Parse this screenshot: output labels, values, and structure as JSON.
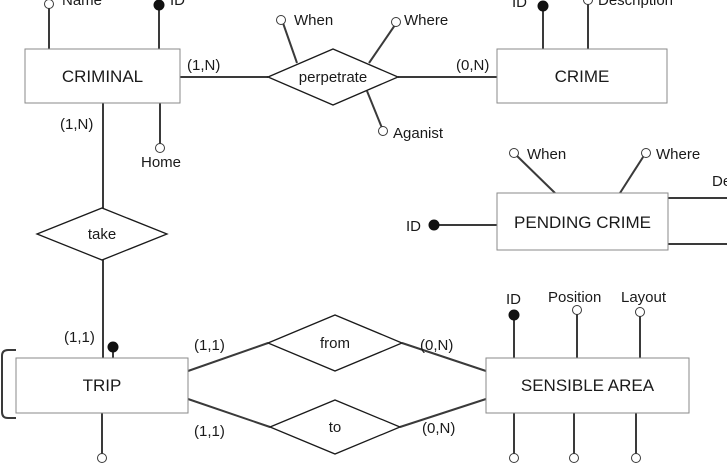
{
  "entities": {
    "criminal": "CRIMINAL",
    "crime": "CRIME",
    "pending_crime": "PENDING CRIME",
    "trip": "TRIP",
    "sensible_area": "SENSIBLE AREA"
  },
  "relationships": {
    "perpetrate": "perpetrate",
    "take": "take",
    "from": "from",
    "to": "to"
  },
  "attributes": {
    "criminal_name": "Name",
    "criminal_id": "ID",
    "criminal_home": "Home",
    "perpetrate_when": "When",
    "perpetrate_where": "Where",
    "perpetrate_against": "Aganist",
    "crime_id": "ID",
    "crime_description": "Description",
    "pending_when": "When",
    "pending_where": "Where",
    "pending_id": "ID",
    "pending_partial": "De",
    "area_id": "ID",
    "area_position": "Position",
    "area_layout": "Layout"
  },
  "cardinalities": {
    "criminal_perpetrate": "(1,N)",
    "crime_perpetrate": "(0,N)",
    "criminal_take": "(1,N)",
    "trip_take": "(1,1)",
    "trip_from": "(1,1)",
    "area_from": "(0,N)",
    "trip_to": "(1,1)",
    "area_to": "(0,N)"
  }
}
